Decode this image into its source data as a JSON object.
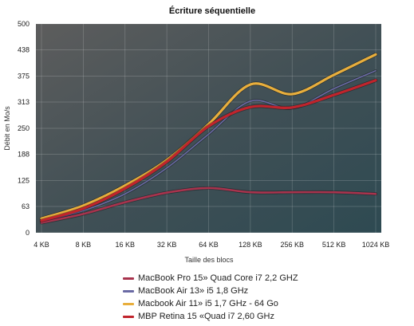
{
  "chart_data": {
    "type": "line",
    "title": "Écriture séquentielle",
    "xlabel": "Taille des blocs",
    "ylabel": "Débit en Mo/s",
    "categories": [
      "4 KB",
      "8 KB",
      "16 KB",
      "32 KB",
      "64 KB",
      "128 KB",
      "256 KB",
      "512 KB",
      "1024 KB"
    ],
    "y_ticks": [
      "0",
      "63",
      "125",
      "188",
      "250",
      "313",
      "375",
      "438",
      "500"
    ],
    "ylim": [
      0,
      500
    ],
    "grid": true,
    "legend_position": "bottom",
    "series": [
      {
        "name": "MacBook Pro 15» Quad Core i7 2,2 GHZ",
        "color": "#a8334d",
        "values": [
          24,
          45,
          73,
          96,
          107,
          97,
          97,
          97,
          93
        ]
      },
      {
        "name": "MacBook Air 13» i5 1,8 GHz",
        "color": "#6a6aa4",
        "values": [
          27,
          53,
          93,
          155,
          236,
          315,
          298,
          345,
          388
        ]
      },
      {
        "name": "Macbook Air 11» i5 1,7 GHz - 64 Go",
        "color": "#e8ae3c",
        "values": [
          34,
          65,
          113,
          174,
          260,
          355,
          332,
          378,
          427
        ]
      },
      {
        "name": "MBP Retina 15 «Quad i7 2,60 GHz",
        "color": "#c0242c",
        "values": [
          29,
          58,
          106,
          170,
          255,
          301,
          300,
          330,
          365
        ]
      }
    ]
  }
}
